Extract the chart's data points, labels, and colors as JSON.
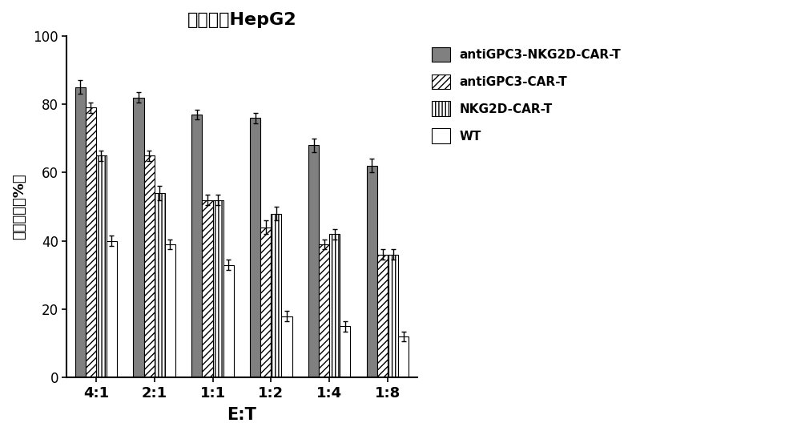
{
  "title": "肝癌细胞HepG2",
  "xlabel": "E:T",
  "ylabel": "杀伤效率（%）",
  "categories": [
    "4:1",
    "2:1",
    "1:1",
    "1:2",
    "1:4",
    "1:8"
  ],
  "series": {
    "antiGPC3-NKG2D-CAR-T": [
      85,
      82,
      77,
      76,
      68,
      62
    ],
    "antiGPC3-CAR-T": [
      79,
      65,
      52,
      44,
      39,
      36
    ],
    "NKG2D-CAR-T": [
      65,
      54,
      52,
      48,
      42,
      36
    ],
    "WT": [
      40,
      39,
      33,
      18,
      15,
      12
    ]
  },
  "errors": {
    "antiGPC3-NKG2D-CAR-T": [
      2.0,
      1.5,
      1.5,
      1.5,
      2.0,
      2.0
    ],
    "antiGPC3-CAR-T": [
      1.5,
      1.5,
      1.5,
      2.0,
      1.5,
      1.5
    ],
    "NKG2D-CAR-T": [
      1.5,
      2.0,
      1.5,
      2.0,
      1.5,
      1.5
    ],
    "WT": [
      1.5,
      1.5,
      1.5,
      1.5,
      1.5,
      1.5
    ]
  },
  "colors": {
    "antiGPC3-NKG2D-CAR-T": "#808080",
    "antiGPC3-CAR-T": "#ffffff",
    "NKG2D-CAR-T": "#ffffff",
    "WT": "#ffffff"
  },
  "hatches": {
    "antiGPC3-NKG2D-CAR-T": "",
    "antiGPC3-CAR-T": "////",
    "NKG2D-CAR-T": "||||",
    "WT": "===="
  },
  "ylim": [
    0,
    100
  ],
  "yticks": [
    0,
    20,
    40,
    60,
    80,
    100
  ],
  "bar_width": 0.18,
  "figsize": [
    10.0,
    5.43
  ],
  "dpi": 100,
  "legend_labels": [
    "antiGPC3-NKG2D-CAR-T",
    "antiGPC3-CAR-T",
    "NKG2D-CAR-T",
    "WT"
  ]
}
